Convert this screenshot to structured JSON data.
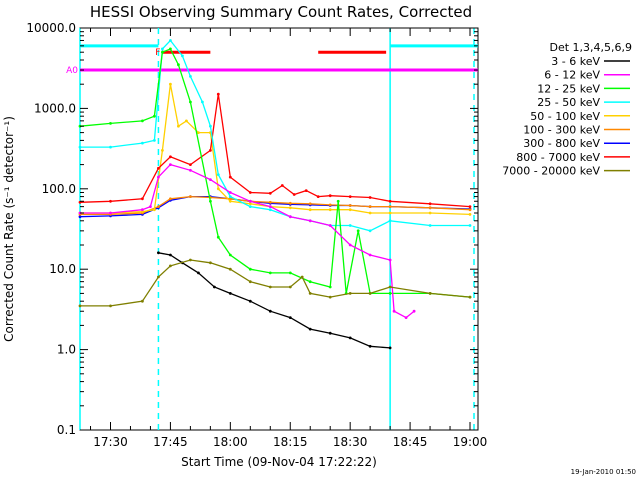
{
  "chart_data": {
    "type": "line",
    "title": "HESSI Observing Summary Count Rates, Corrected",
    "xlabel": "Start Time (09-Nov-04 17:22:22)",
    "ylabel": "Corrected Count Rate (s⁻¹ detector⁻¹)",
    "y_scale": "log",
    "ylim": [
      0.1,
      10000
    ],
    "xlim": [
      "17:22:22",
      "19:02:00"
    ],
    "x_ticks": [
      "17:30",
      "17:45",
      "18:00",
      "18:15",
      "18:30",
      "18:45",
      "19:00"
    ],
    "y_ticks": [
      "0.1",
      "1.0",
      "10.0",
      "100.0",
      "1000.0",
      "10000.0"
    ],
    "legend_title": "Det 1,3,4,5,6,9",
    "legend_position": "right",
    "flags": [
      {
        "label": "F",
        "color": "#ff0000",
        "segments": [
          [
            "17:43",
            "17:55"
          ],
          [
            "18:22",
            "18:39"
          ]
        ]
      },
      {
        "label": "A0",
        "color": "#ff00ff",
        "segments": [
          [
            "17:22:22",
            "18:40"
          ],
          [
            "18:40",
            "19:02"
          ]
        ]
      }
    ],
    "vertical_markers": [
      {
        "time": "17:22:22",
        "color": "#00ffff",
        "style": "solid"
      },
      {
        "time": "17:42",
        "color": "#00ffff",
        "style": "dashed"
      },
      {
        "time": "18:40",
        "color": "#00ffff",
        "style": "solid"
      },
      {
        "time": "19:01",
        "color": "#00ffff",
        "style": "dashed"
      }
    ],
    "night_bars": [
      {
        "start": "17:22:22",
        "end": "17:42",
        "level": 6000,
        "color": "#00ffff"
      },
      {
        "start": "18:40",
        "end": "19:02",
        "level": 6000,
        "color": "#00ffff"
      }
    ],
    "series": [
      {
        "name": "3 - 6 keV",
        "color": "#000000",
        "x": [
          "17:42",
          "17:45",
          "17:48",
          "17:52",
          "17:56",
          "18:00",
          "18:05",
          "18:10",
          "18:15",
          "18:20",
          "18:25",
          "18:30",
          "18:35",
          "18:40"
        ],
        "y": [
          16,
          15,
          12,
          9,
          6,
          5,
          4,
          3,
          2.5,
          1.8,
          1.6,
          1.4,
          1.1,
          1.05
        ]
      },
      {
        "name": "6 - 12 keV",
        "color": "#ff00ff",
        "x": [
          "17:22:22",
          "17:30",
          "17:38",
          "17:40",
          "17:42",
          "17:45",
          "17:50",
          "17:55",
          "18:00",
          "18:05",
          "18:10",
          "18:15",
          "18:20",
          "18:25",
          "18:30",
          "18:35",
          "18:40",
          "18:41",
          "18:44",
          "18:46"
        ],
        "y": [
          50,
          50,
          55,
          60,
          140,
          200,
          170,
          130,
          90,
          70,
          60,
          45,
          40,
          35,
          20,
          15,
          13,
          3,
          2.5,
          3
        ]
      },
      {
        "name": "12 - 25 keV",
        "color": "#00ff00",
        "x": [
          "17:22:22",
          "17:30",
          "17:38",
          "17:41",
          "17:43",
          "17:45",
          "17:47",
          "17:50",
          "17:55",
          "17:57",
          "18:00",
          "18:05",
          "18:10",
          "18:15",
          "18:20",
          "18:25",
          "18:27",
          "18:29",
          "18:32",
          "18:35",
          "18:40",
          "18:50",
          "19:00"
        ],
        "y": [
          600,
          650,
          700,
          800,
          5000,
          5500,
          3500,
          1200,
          70,
          25,
          15,
          10,
          9,
          9,
          7,
          6,
          70,
          5,
          30,
          5,
          5,
          5,
          4.5
        ]
      },
      {
        "name": "25 - 50 keV",
        "color": "#00ffff",
        "x": [
          "17:22:22",
          "17:30",
          "17:38",
          "17:41",
          "17:43",
          "17:45",
          "17:48",
          "17:50",
          "17:53",
          "17:55",
          "17:57",
          "18:00",
          "18:05",
          "18:10",
          "18:15",
          "18:20",
          "18:25",
          "18:30",
          "18:35",
          "18:40",
          "18:50",
          "19:00"
        ],
        "y": [
          330,
          330,
          370,
          400,
          5500,
          7000,
          4500,
          2500,
          1200,
          600,
          150,
          80,
          60,
          55,
          45,
          40,
          35,
          35,
          30,
          40,
          35,
          35
        ]
      },
      {
        "name": "50 - 100 keV",
        "color": "#ffd000",
        "x": [
          "17:22:22",
          "17:30",
          "17:38",
          "17:41",
          "17:43",
          "17:45",
          "17:47",
          "17:49",
          "17:52",
          "17:55",
          "17:57",
          "18:00",
          "18:05",
          "18:10",
          "18:15",
          "18:20",
          "18:25",
          "18:30",
          "18:35",
          "18:40",
          "18:50",
          "19:00"
        ],
        "y": [
          50,
          50,
          52,
          55,
          300,
          2000,
          600,
          700,
          500,
          500,
          100,
          70,
          65,
          60,
          58,
          55,
          55,
          55,
          50,
          50,
          50,
          48
        ]
      },
      {
        "name": "100 - 300 keV",
        "color": "#ff8800",
        "x": [
          "17:22:22",
          "17:30",
          "17:38",
          "17:42",
          "17:45",
          "17:50",
          "17:55",
          "18:00",
          "18:05",
          "18:10",
          "18:15",
          "18:20",
          "18:25",
          "18:30",
          "18:35",
          "18:40",
          "18:50",
          "19:00"
        ],
        "y": [
          48,
          48,
          50,
          60,
          75,
          80,
          78,
          75,
          70,
          68,
          66,
          65,
          63,
          62,
          60,
          60,
          58,
          55
        ]
      },
      {
        "name": "300 - 800 keV",
        "color": "#0000ff",
        "x": [
          "17:22:22",
          "17:30",
          "17:38",
          "17:42",
          "17:45",
          "17:50",
          "17:55",
          "18:00",
          "18:05",
          "18:10",
          "18:15",
          "18:20",
          "18:25",
          "18:30",
          "18:35",
          "18:40",
          "18:50",
          "19:00"
        ],
        "y": [
          45,
          46,
          48,
          58,
          72,
          80,
          80,
          75,
          70,
          66,
          64,
          63,
          62,
          62,
          60,
          60,
          58,
          56
        ]
      },
      {
        "name": "800 - 7000 keV",
        "color": "#ff0000",
        "x": [
          "17:22:22",
          "17:30",
          "17:38",
          "17:42",
          "17:45",
          "17:50",
          "17:55",
          "17:57",
          "18:00",
          "18:05",
          "18:10",
          "18:13",
          "18:16",
          "18:19",
          "18:22",
          "18:25",
          "18:30",
          "18:35",
          "18:40",
          "18:50",
          "19:00"
        ],
        "y": [
          68,
          70,
          75,
          180,
          250,
          200,
          300,
          1500,
          140,
          90,
          88,
          110,
          85,
          95,
          80,
          82,
          80,
          78,
          70,
          65,
          60
        ]
      },
      {
        "name": "7000 - 20000 keV",
        "color": "#7f7f00",
        "x": [
          "17:22:22",
          "17:30",
          "17:38",
          "17:42",
          "17:45",
          "17:50",
          "17:55",
          "18:00",
          "18:05",
          "18:10",
          "18:15",
          "18:18",
          "18:20",
          "18:25",
          "18:30",
          "18:35",
          "18:40",
          "18:50",
          "19:00"
        ],
        "y": [
          3.5,
          3.5,
          4,
          8,
          11,
          13,
          12,
          10,
          7,
          6,
          6,
          8,
          5,
          4.5,
          5,
          5,
          6,
          5,
          4.5
        ]
      }
    ]
  },
  "footer": {
    "timestamp": "19-Jan-2010 01:50"
  }
}
